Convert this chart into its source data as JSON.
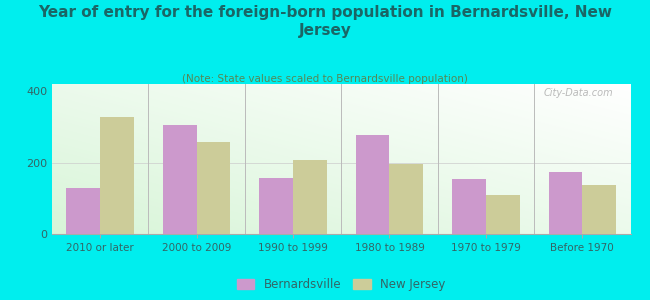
{
  "title": "Year of entry for the foreign-born population in Bernardsville, New\nJersey",
  "subtitle": "(Note: State values scaled to Bernardsville population)",
  "categories": [
    "2010 or later",
    "2000 to 2009",
    "1990 to 1999",
    "1980 to 1989",
    "1970 to 1979",
    "Before 1970"
  ],
  "bernardsville": [
    130,
    305,
    158,
    278,
    155,
    175
  ],
  "new_jersey": [
    328,
    258,
    208,
    195,
    108,
    138
  ],
  "bernardsville_color": "#cc99cc",
  "new_jersey_color": "#cccc99",
  "background_color": "#00eeee",
  "title_color": "#1a6666",
  "subtitle_color": "#558855",
  "watermark": "City-Data.com",
  "ylim": [
    0,
    420
  ],
  "yticks": [
    0,
    200,
    400
  ],
  "bar_width": 0.35,
  "legend_labels": [
    "Bernardsville",
    "New Jersey"
  ]
}
